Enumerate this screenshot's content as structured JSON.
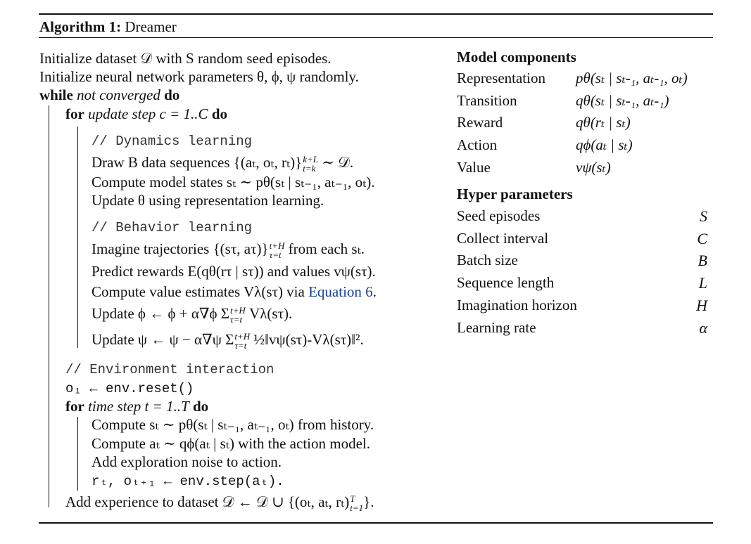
{
  "algorithm": {
    "label": "Algorithm 1:",
    "name": "Dreamer"
  },
  "lines": {
    "init_dataset": "Initialize dataset 𝒟 with S random seed episodes.",
    "init_params": "Initialize neural network parameters θ, ϕ, ψ randomly.",
    "while_kw": "while",
    "while_cond": "not converged",
    "do_kw": "do",
    "for_kw": "for",
    "for_update_cond": "update step c = 1..C",
    "comment_dynamics": "// Dynamics learning",
    "draw": "Draw B data sequences {(aₜ, oₜ, rₜ)}",
    "draw_sup": "k+L",
    "draw_sub": "t=k",
    "draw_tail": " ∼ 𝒟.",
    "compute_states": "Compute model states sₜ ∼ pθ(sₜ | sₜ₋₁, aₜ₋₁, oₜ).",
    "update_theta": "Update θ using representation learning.",
    "comment_behavior": "// Behavior learning",
    "imagine": "Imagine trajectories {(sτ, aτ)}",
    "imagine_sup": "t+H",
    "imagine_sub": "τ=t",
    "imagine_tail": " from each sₜ.",
    "predict": "Predict rewards E(qθ(rτ | sτ)) and values vψ(sτ).",
    "compute_value_pre": "Compute value estimates Vλ(sτ) via ",
    "compute_value_link": "Equation 6",
    "compute_value_post": ".",
    "update_phi": "Update ϕ ← ϕ + α∇ϕ Σ",
    "update_phi_sup": "t+H",
    "update_phi_sub": "τ=t",
    "update_phi_tail": " Vλ(sτ).",
    "update_psi": "Update ψ ← ψ − α∇ψ Σ",
    "update_psi_sup": "t+H",
    "update_psi_sub": "τ=t",
    "update_psi_tail": " ½‖vψ(sτ)-Vλ(sτ)‖².",
    "comment_env": "// Environment interaction",
    "env_reset": "o₁ ← env.reset()",
    "for_time_cond": "time step t = 1..T",
    "compute_st": "Compute sₜ ∼ pθ(sₜ | sₜ₋₁, aₜ₋₁, oₜ) from history.",
    "compute_at": "Compute aₜ ∼ qϕ(aₜ | sₜ) with the action model.",
    "add_noise": "Add exploration noise to action.",
    "env_step": "rₜ, oₜ₊₁ ← env.step(aₜ).",
    "add_experience": "Add experience to dataset 𝒟 ← 𝒟 ∪ {(oₜ, aₜ, rₜ)",
    "add_experience_sup": "T",
    "add_experience_sub": "t=1",
    "add_experience_tail": "}."
  },
  "model_components": {
    "title": "Model components",
    "rows": [
      {
        "label": "Representation",
        "value": "pθ(sₜ | sₜ-₁, aₜ-₁, oₜ)"
      },
      {
        "label": "Transition",
        "value": "qθ(sₜ | sₜ-₁, aₜ-₁)"
      },
      {
        "label": "Reward",
        "value": "qθ(rₜ | sₜ)"
      },
      {
        "label": "Action",
        "value": "qϕ(aₜ | sₜ)"
      },
      {
        "label": "Value",
        "value": "vψ(sₜ)"
      }
    ]
  },
  "hyper_parameters": {
    "title": "Hyper parameters",
    "rows": [
      {
        "label": "Seed episodes",
        "value": "S"
      },
      {
        "label": "Collect interval",
        "value": "C"
      },
      {
        "label": "Batch size",
        "value": "B"
      },
      {
        "label": "Sequence length",
        "value": "L"
      },
      {
        "label": "Imagination horizon",
        "value": "H"
      },
      {
        "label": "Learning rate",
        "value": "α"
      }
    ]
  }
}
